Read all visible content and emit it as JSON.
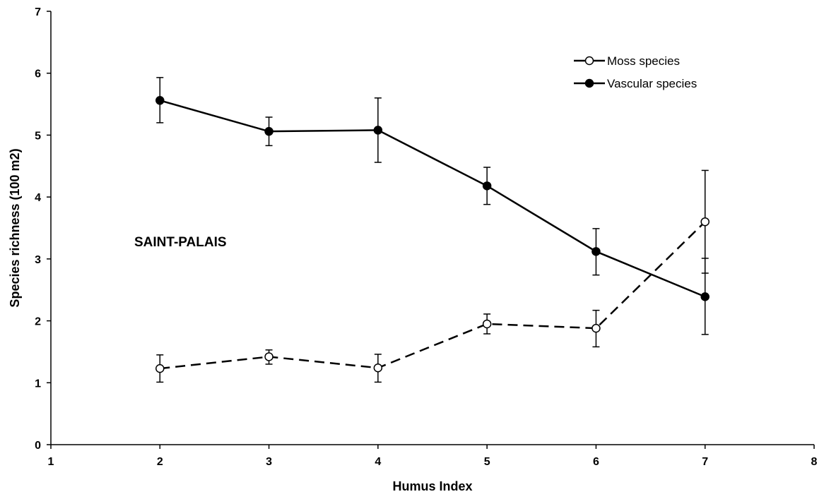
{
  "chart_data": {
    "type": "line",
    "xlabel": "Humus Index",
    "ylabel": "Species richness (100 m2)",
    "xlim": [
      1,
      8
    ],
    "ylim": [
      0,
      7
    ],
    "x_ticks": [
      1,
      2,
      3,
      4,
      5,
      6,
      7,
      8
    ],
    "y_ticks": [
      0,
      1,
      2,
      3,
      4,
      5,
      6,
      7
    ],
    "grid": false,
    "legend_position": "top-right",
    "annotation": "SAINT-PALAIS",
    "series": [
      {
        "name": "Moss species",
        "marker": "open-circle",
        "line_style": "dashed",
        "color": "#000000",
        "points": [
          {
            "x": 2,
            "y": 1.23,
            "err_low": 1.01,
            "err_high": 1.45
          },
          {
            "x": 3,
            "y": 1.42,
            "err_low": 1.3,
            "err_high": 1.53
          },
          {
            "x": 4,
            "y": 1.24,
            "err_low": 1.01,
            "err_high": 1.46
          },
          {
            "x": 5,
            "y": 1.95,
            "err_low": 1.79,
            "err_high": 2.11
          },
          {
            "x": 6,
            "y": 1.88,
            "err_low": 1.58,
            "err_high": 2.17
          },
          {
            "x": 7,
            "y": 3.6,
            "err_low": 2.77,
            "err_high": 4.43
          }
        ]
      },
      {
        "name": "Vascular species",
        "marker": "filled-circle",
        "line_style": "solid",
        "color": "#000000",
        "points": [
          {
            "x": 2,
            "y": 5.56,
            "err_low": 5.2,
            "err_high": 5.93
          },
          {
            "x": 3,
            "y": 5.06,
            "err_low": 4.83,
            "err_high": 5.29
          },
          {
            "x": 4,
            "y": 5.08,
            "err_low": 4.56,
            "err_high": 5.6
          },
          {
            "x": 5,
            "y": 4.18,
            "err_low": 3.88,
            "err_high": 4.48
          },
          {
            "x": 6,
            "y": 3.12,
            "err_low": 2.74,
            "err_high": 3.49
          },
          {
            "x": 7,
            "y": 2.39,
            "err_low": 1.78,
            "err_high": 3.01
          }
        ]
      }
    ]
  }
}
